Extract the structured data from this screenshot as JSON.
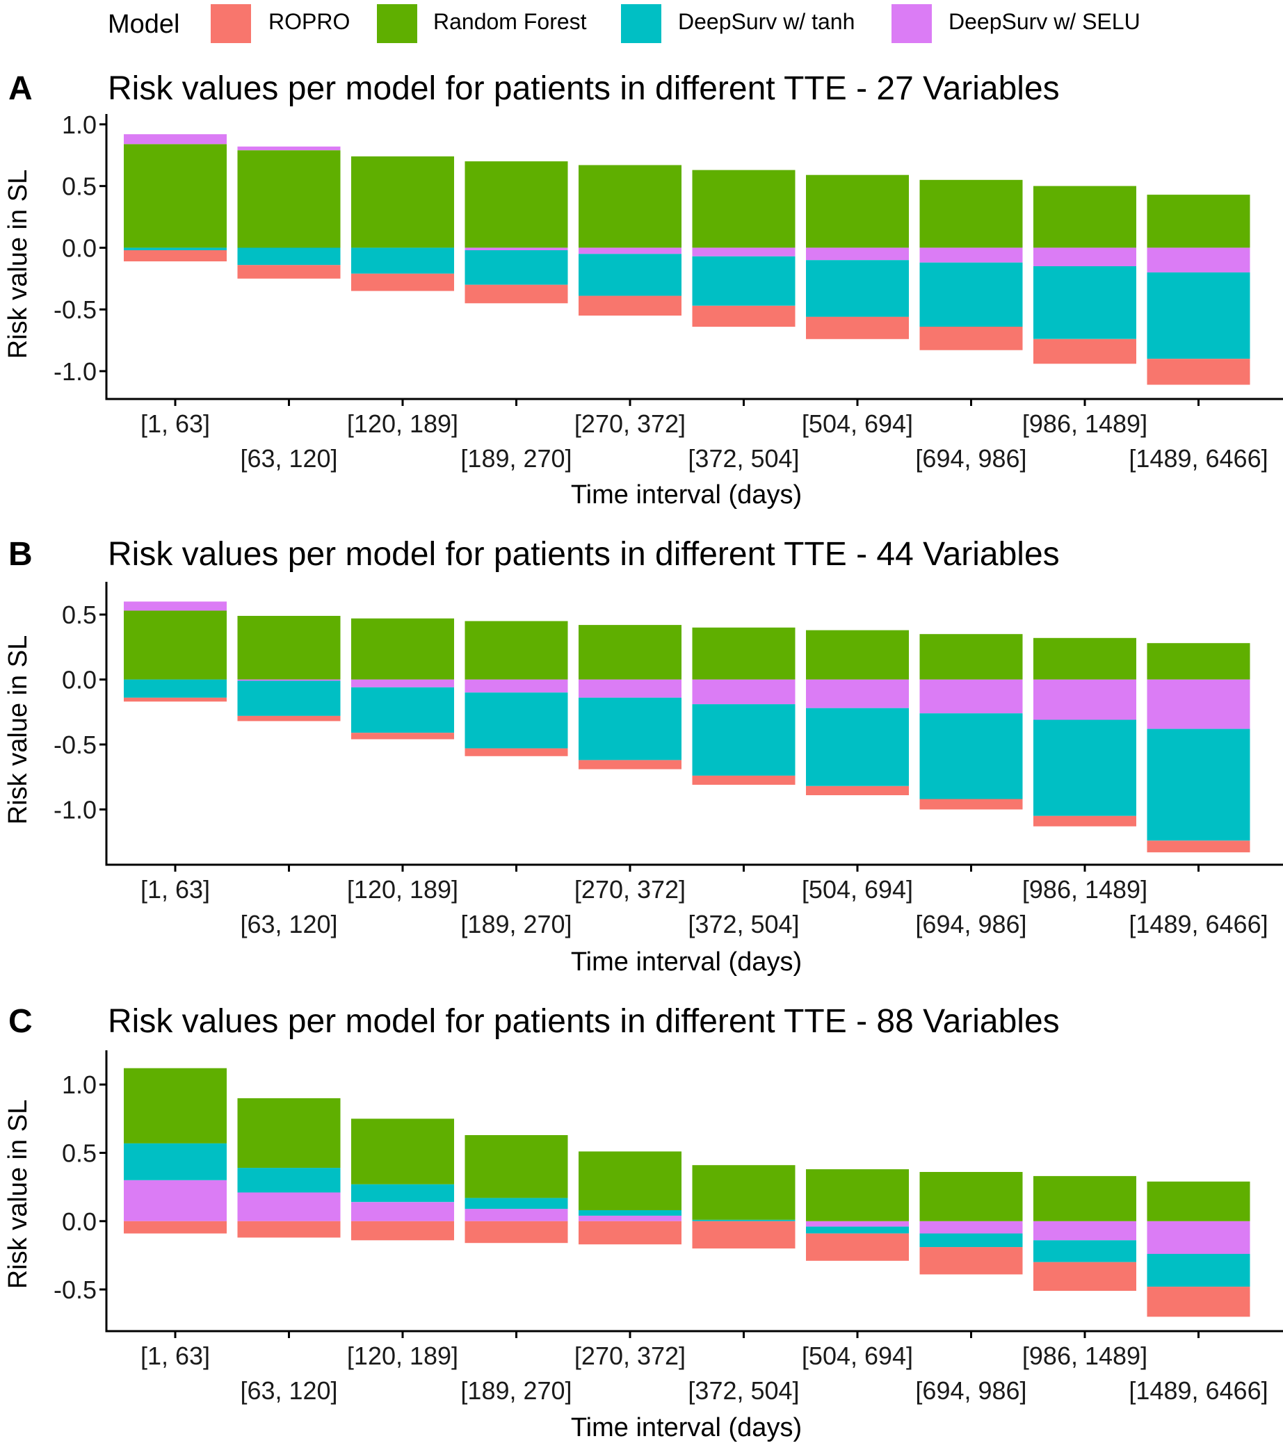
{
  "legend": {
    "title": "Model",
    "items": [
      {
        "name": "ROPRO",
        "color": "#F8766D"
      },
      {
        "name": "Random Forest",
        "color": "#5FAF00"
      },
      {
        "name": "DeepSurv w/ tanh",
        "color": "#00BFC4"
      },
      {
        "name": "DeepSurv w/ SELU",
        "color": "#DB7CF5"
      }
    ]
  },
  "chart_data": [
    {
      "panel": "A",
      "type": "bar",
      "stacked": true,
      "title": "Risk values per model for patients in different TTE - 27 Variables",
      "xlabel": "Time interval (days)",
      "ylabel": "Risk value in SL",
      "categories": [
        "[1, 63]",
        "[63, 120]",
        "[120, 189]",
        "[189, 270]",
        "[270, 372]",
        "[372, 504]",
        "[504, 694]",
        "[694, 986]",
        "[986, 1489]",
        "[1489, 6466]"
      ],
      "ylim": [
        -1.22,
        1.05
      ],
      "yticks": [
        1.0,
        0.5,
        0.0,
        -0.5,
        -1.0
      ],
      "ytick_labels": [
        "1.0",
        "0.5",
        "0.0",
        "-0.5",
        "-1.0"
      ],
      "series": [
        {
          "name": "Random Forest",
          "values": [
            0.84,
            0.79,
            0.74,
            0.7,
            0.67,
            0.63,
            0.59,
            0.55,
            0.5,
            0.43
          ]
        },
        {
          "name": "DeepSurv w/ SELU",
          "values": [
            0.08,
            0.03,
            0.0,
            -0.02,
            -0.05,
            -0.07,
            -0.1,
            -0.12,
            -0.15,
            -0.2
          ]
        },
        {
          "name": "DeepSurv w/ tanh",
          "values": [
            -0.02,
            -0.14,
            -0.21,
            -0.28,
            -0.34,
            -0.4,
            -0.46,
            -0.52,
            -0.59,
            -0.7
          ]
        },
        {
          "name": "ROPRO",
          "values": [
            -0.09,
            -0.11,
            -0.14,
            -0.15,
            -0.16,
            -0.17,
            -0.18,
            -0.19,
            -0.2,
            -0.21
          ]
        }
      ]
    },
    {
      "panel": "B",
      "type": "bar",
      "stacked": true,
      "title": "Risk values per model for patients in different TTE - 44 Variables",
      "xlabel": "Time interval (days)",
      "ylabel": "Risk value in SL",
      "categories": [
        "[1, 63]",
        "[63, 120]",
        "[120, 189]",
        "[189, 270]",
        "[270, 372]",
        "[372, 504]",
        "[504, 694]",
        "[694, 986]",
        "[986, 1489]",
        "[1489, 6466]"
      ],
      "ylim": [
        -1.42,
        0.72
      ],
      "yticks": [
        0.5,
        0.0,
        -0.5,
        -1.0
      ],
      "ytick_labels": [
        "0.5",
        "0.0",
        "-0.5",
        "-1.0"
      ],
      "series": [
        {
          "name": "Random Forest",
          "values": [
            0.53,
            0.49,
            0.47,
            0.45,
            0.42,
            0.4,
            0.38,
            0.35,
            0.32,
            0.28
          ]
        },
        {
          "name": "DeepSurv w/ SELU",
          "values": [
            0.07,
            -0.01,
            -0.06,
            -0.1,
            -0.14,
            -0.19,
            -0.22,
            -0.26,
            -0.31,
            -0.38
          ]
        },
        {
          "name": "DeepSurv w/ tanh",
          "values": [
            -0.14,
            -0.27,
            -0.35,
            -0.43,
            -0.48,
            -0.55,
            -0.6,
            -0.66,
            -0.74,
            -0.86
          ]
        },
        {
          "name": "ROPRO",
          "values": [
            -0.03,
            -0.04,
            -0.05,
            -0.06,
            -0.07,
            -0.07,
            -0.07,
            -0.08,
            -0.08,
            -0.09
          ]
        }
      ]
    },
    {
      "panel": "C",
      "type": "bar",
      "stacked": true,
      "title": "Risk values per model for patients in different TTE - 88 Variables",
      "xlabel": "Time interval (days)",
      "ylabel": "Risk value in SL",
      "categories": [
        "[1, 63]",
        "[63, 120]",
        "[120, 189]",
        "[189, 270]",
        "[270, 372]",
        "[372, 504]",
        "[504, 694]",
        "[694, 986]",
        "[986, 1489]",
        "[1489, 6466]"
      ],
      "ylim": [
        -0.8,
        1.22
      ],
      "yticks": [
        1.0,
        0.5,
        0.0,
        -0.5
      ],
      "ytick_labels": [
        "1.0",
        "0.5",
        "0.0",
        "-0.5"
      ],
      "series": [
        {
          "name": "DeepSurv w/ SELU",
          "values": [
            0.3,
            0.21,
            0.14,
            0.09,
            0.04,
            0.0,
            -0.04,
            -0.09,
            -0.14,
            -0.24
          ]
        },
        {
          "name": "DeepSurv w/ tanh",
          "values": [
            0.27,
            0.18,
            0.13,
            0.08,
            0.04,
            0.01,
            -0.05,
            -0.1,
            -0.16,
            -0.24
          ]
        },
        {
          "name": "Random Forest",
          "values": [
            0.55,
            0.51,
            0.48,
            0.46,
            0.43,
            0.4,
            0.38,
            0.36,
            0.33,
            0.29
          ]
        },
        {
          "name": "ROPRO",
          "values": [
            -0.09,
            -0.12,
            -0.14,
            -0.16,
            -0.17,
            -0.2,
            -0.2,
            -0.2,
            -0.21,
            -0.22
          ]
        }
      ]
    }
  ]
}
